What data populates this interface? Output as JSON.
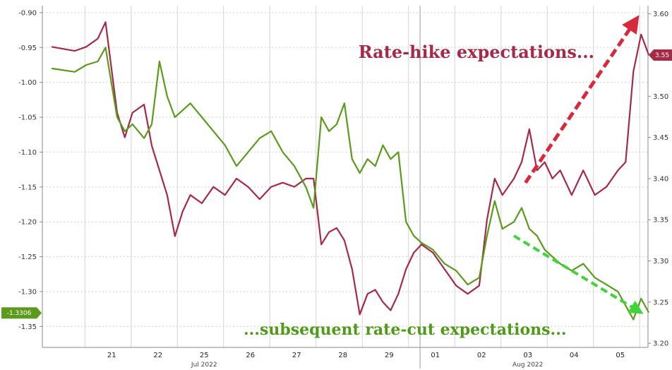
{
  "chart_data": {
    "type": "line",
    "title": "",
    "xlabel": "",
    "months": [
      {
        "label": "Jul 2022",
        "anchor": "2022-07-25"
      },
      {
        "label": "Aug 2022",
        "anchor": "2022-08-03"
      }
    ],
    "x_ticks": [
      {
        "label": "21",
        "date": "2022-07-21"
      },
      {
        "label": "22",
        "date": "2022-07-22"
      },
      {
        "label": "25",
        "date": "2022-07-25"
      },
      {
        "label": "26",
        "date": "2022-07-26"
      },
      {
        "label": "27",
        "date": "2022-07-27"
      },
      {
        "label": "28",
        "date": "2022-07-28"
      },
      {
        "label": "29",
        "date": "2022-07-29"
      },
      {
        "label": "01",
        "date": "2022-08-01"
      },
      {
        "label": "02",
        "date": "2022-08-02"
      },
      {
        "label": "03",
        "date": "2022-08-03"
      },
      {
        "label": "04",
        "date": "2022-08-04"
      },
      {
        "label": "05",
        "date": "2022-08-05"
      }
    ],
    "y_left": {
      "range": [
        -1.38,
        -0.89
      ],
      "ticks": [
        "-0.90",
        "-0.95",
        "-1.00",
        "-1.05",
        "-1.10",
        "-1.15",
        "-1.20",
        "-1.25",
        "-1.30",
        "-1.35"
      ],
      "last_value_badge": "-1.3306",
      "badge_color": "#5a9a1c"
    },
    "y_right": {
      "range": [
        3.195,
        3.61
      ],
      "ticks": [
        "3.60",
        "3.55",
        "3.50",
        "3.45",
        "3.40",
        "3.35",
        "3.30",
        "3.25",
        "3.20"
      ],
      "last_value_badge": "3.55",
      "badge_color": "#a52a48"
    },
    "grid": true,
    "series": [
      {
        "color": "#a52a48",
        "axis": "right",
        "points": [
          [
            "2022-07-20",
            3.56
          ],
          [
            "2022-07-20T12",
            3.555
          ],
          [
            "2022-07-20T18",
            3.56
          ],
          [
            "2022-07-21",
            3.57
          ],
          [
            "2022-07-21T04",
            3.59
          ],
          [
            "2022-07-21T10",
            3.48
          ],
          [
            "2022-07-21T14",
            3.45
          ],
          [
            "2022-07-21T18",
            3.48
          ],
          [
            "2022-07-22",
            3.49
          ],
          [
            "2022-07-22T04",
            3.44
          ],
          [
            "2022-07-22T08",
            3.41
          ],
          [
            "2022-07-22T12",
            3.38
          ],
          [
            "2022-07-22T16",
            3.33
          ],
          [
            "2022-07-22T20",
            3.36
          ],
          [
            "2022-07-25",
            3.38
          ],
          [
            "2022-07-25T06",
            3.37
          ],
          [
            "2022-07-25T12",
            3.39
          ],
          [
            "2022-07-25T18",
            3.38
          ],
          [
            "2022-07-26",
            3.4
          ],
          [
            "2022-07-26T06",
            3.39
          ],
          [
            "2022-07-26T12",
            3.375
          ],
          [
            "2022-07-26T18",
            3.39
          ],
          [
            "2022-07-27",
            3.395
          ],
          [
            "2022-07-27T06",
            3.39
          ],
          [
            "2022-07-27T12",
            3.4
          ],
          [
            "2022-07-27T16",
            3.4
          ],
          [
            "2022-07-27T20",
            3.32
          ],
          [
            "2022-07-28",
            3.335
          ],
          [
            "2022-07-28T04",
            3.34
          ],
          [
            "2022-07-28T08",
            3.325
          ],
          [
            "2022-07-28T12",
            3.29
          ],
          [
            "2022-07-28T16",
            3.235
          ],
          [
            "2022-07-28T20",
            3.26
          ],
          [
            "2022-07-29",
            3.265
          ],
          [
            "2022-07-29T04",
            3.25
          ],
          [
            "2022-07-29T08",
            3.24
          ],
          [
            "2022-07-29T12",
            3.26
          ],
          [
            "2022-07-29T16",
            3.29
          ],
          [
            "2022-07-29T20",
            3.31
          ],
          [
            "2022-08-01",
            3.32
          ],
          [
            "2022-08-01T06",
            3.31
          ],
          [
            "2022-08-01T12",
            3.29
          ],
          [
            "2022-08-01T18",
            3.27
          ],
          [
            "2022-08-02",
            3.26
          ],
          [
            "2022-08-02T06",
            3.27
          ],
          [
            "2022-08-02T10",
            3.35
          ],
          [
            "2022-08-02T14",
            3.4
          ],
          [
            "2022-08-02T18",
            3.38
          ],
          [
            "2022-08-03",
            3.4
          ],
          [
            "2022-08-03T04",
            3.42
          ],
          [
            "2022-08-03T08",
            3.46
          ],
          [
            "2022-08-03T12",
            3.41
          ],
          [
            "2022-08-03T16",
            3.42
          ],
          [
            "2022-08-03T20",
            3.4
          ],
          [
            "2022-08-04",
            3.41
          ],
          [
            "2022-08-04T06",
            3.38
          ],
          [
            "2022-08-04T12",
            3.41
          ],
          [
            "2022-08-04T18",
            3.38
          ],
          [
            "2022-08-05",
            3.39
          ],
          [
            "2022-08-05T06",
            3.41
          ],
          [
            "2022-08-05T10",
            3.42
          ],
          [
            "2022-08-05T14",
            3.53
          ],
          [
            "2022-08-05T18",
            3.575
          ],
          [
            "2022-08-05T22",
            3.55
          ]
        ]
      },
      {
        "color": "#5a9a1c",
        "axis": "left",
        "points": [
          [
            "2022-07-20",
            -0.98
          ],
          [
            "2022-07-20T12",
            -0.985
          ],
          [
            "2022-07-20T18",
            -0.975
          ],
          [
            "2022-07-21",
            -0.97
          ],
          [
            "2022-07-21T04",
            -0.95
          ],
          [
            "2022-07-21T10",
            -1.05
          ],
          [
            "2022-07-21T14",
            -1.07
          ],
          [
            "2022-07-21T18",
            -1.06
          ],
          [
            "2022-07-22",
            -1.08
          ],
          [
            "2022-07-22T04",
            -1.06
          ],
          [
            "2022-07-22T08",
            -0.97
          ],
          [
            "2022-07-22T12",
            -1.02
          ],
          [
            "2022-07-22T16",
            -1.05
          ],
          [
            "2022-07-22T20",
            -1.04
          ],
          [
            "2022-07-25",
            -1.03
          ],
          [
            "2022-07-25T06",
            -1.05
          ],
          [
            "2022-07-25T12",
            -1.07
          ],
          [
            "2022-07-25T18",
            -1.09
          ],
          [
            "2022-07-26",
            -1.12
          ],
          [
            "2022-07-26T06",
            -1.1
          ],
          [
            "2022-07-26T12",
            -1.08
          ],
          [
            "2022-07-26T18",
            -1.07
          ],
          [
            "2022-07-27",
            -1.1
          ],
          [
            "2022-07-27T06",
            -1.12
          ],
          [
            "2022-07-27T12",
            -1.15
          ],
          [
            "2022-07-27T16",
            -1.18
          ],
          [
            "2022-07-27T20",
            -1.05
          ],
          [
            "2022-07-28",
            -1.07
          ],
          [
            "2022-07-28T04",
            -1.06
          ],
          [
            "2022-07-28T08",
            -1.03
          ],
          [
            "2022-07-28T12",
            -1.11
          ],
          [
            "2022-07-28T16",
            -1.13
          ],
          [
            "2022-07-28T20",
            -1.11
          ],
          [
            "2022-07-29",
            -1.12
          ],
          [
            "2022-07-29T04",
            -1.09
          ],
          [
            "2022-07-29T08",
            -1.11
          ],
          [
            "2022-07-29T12",
            -1.1
          ],
          [
            "2022-07-29T16",
            -1.2
          ],
          [
            "2022-07-29T20",
            -1.22
          ],
          [
            "2022-08-01",
            -1.23
          ],
          [
            "2022-08-01T06",
            -1.24
          ],
          [
            "2022-08-01T12",
            -1.26
          ],
          [
            "2022-08-01T18",
            -1.27
          ],
          [
            "2022-08-02",
            -1.29
          ],
          [
            "2022-08-02T06",
            -1.28
          ],
          [
            "2022-08-02T10",
            -1.22
          ],
          [
            "2022-08-02T14",
            -1.17
          ],
          [
            "2022-08-02T18",
            -1.21
          ],
          [
            "2022-08-03",
            -1.2
          ],
          [
            "2022-08-03T04",
            -1.18
          ],
          [
            "2022-08-03T08",
            -1.21
          ],
          [
            "2022-08-03T12",
            -1.22
          ],
          [
            "2022-08-03T16",
            -1.24
          ],
          [
            "2022-08-03T20",
            -1.25
          ],
          [
            "2022-08-04",
            -1.26
          ],
          [
            "2022-08-04T06",
            -1.27
          ],
          [
            "2022-08-04T12",
            -1.26
          ],
          [
            "2022-08-04T18",
            -1.28
          ],
          [
            "2022-08-05",
            -1.29
          ],
          [
            "2022-08-05T06",
            -1.3
          ],
          [
            "2022-08-05T10",
            -1.32
          ],
          [
            "2022-08-05T14",
            -1.34
          ],
          [
            "2022-08-05T18",
            -1.31
          ],
          [
            "2022-08-05T22",
            -1.33
          ]
        ]
      }
    ],
    "annotations": [
      {
        "text": "Rate-hike expectations...",
        "color": "#a52a48",
        "arrow_from": [
          "2022-08-03T06",
          3.395
        ],
        "arrow_to": [
          "2022-08-05T16",
          3.595
        ],
        "arrow_axis": "right"
      },
      {
        "text": "...subsequent rate-cut expectations...",
        "color": "#4f9a18",
        "arrow_from": [
          "2022-08-03",
          -1.22
        ],
        "arrow_to": [
          "2022-08-05T18",
          -1.33
        ],
        "arrow_axis": "left"
      }
    ]
  }
}
